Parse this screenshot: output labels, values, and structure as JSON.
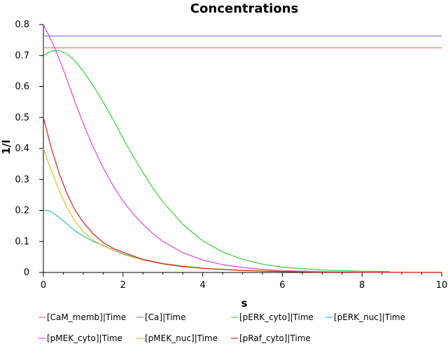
{
  "chart_data": {
    "type": "line",
    "title": "Concentrations",
    "xlabel": "s",
    "ylabel": "1/l",
    "xlim": [
      0,
      10
    ],
    "ylim": [
      0,
      0.8
    ],
    "xticks": [
      0,
      2,
      4,
      6,
      8,
      10
    ],
    "yticks": [
      0,
      0.1,
      0.2,
      0.3,
      0.4,
      0.5,
      0.6,
      0.7,
      0.8
    ],
    "grid": false,
    "legend": "bottom",
    "series": [
      {
        "name": "[CaM_memb]|Time",
        "color": "#e86a6a",
        "x": [
          0,
          10
        ],
        "y": [
          0.725,
          0.725
        ]
      },
      {
        "name": "[Ca]|Time",
        "color": "#8a7ae0",
        "x": [
          0,
          10
        ],
        "y": [
          0.763,
          0.763
        ]
      },
      {
        "name": "[pERK_cyto]|Time",
        "color": "#2fd82f",
        "x": [
          0,
          0.2,
          0.4,
          0.6,
          0.8,
          1.0,
          1.25,
          1.5,
          1.75,
          2.0,
          2.25,
          2.5,
          2.75,
          3.0,
          3.5,
          4.0,
          4.5,
          5.0,
          5.5,
          6.0,
          7.0,
          8.0,
          8.7
        ],
        "y": [
          0.7,
          0.715,
          0.716,
          0.705,
          0.682,
          0.65,
          0.603,
          0.55,
          0.494,
          0.432,
          0.376,
          0.322,
          0.272,
          0.228,
          0.155,
          0.102,
          0.066,
          0.042,
          0.027,
          0.017,
          0.008,
          0.004,
          0.003
        ]
      },
      {
        "name": "[pERK_nuc]|Time",
        "color": "#2bc4cc",
        "x": [
          0,
          0.1,
          0.2,
          0.3,
          0.5,
          0.75,
          1.0,
          1.25,
          1.5,
          2.0,
          2.5,
          3.0,
          4.0,
          5.0,
          6.0,
          7.0,
          8.0,
          10.0
        ],
        "y": [
          0.2,
          0.2,
          0.196,
          0.187,
          0.166,
          0.138,
          0.118,
          0.1,
          0.087,
          0.06,
          0.042,
          0.029,
          0.014,
          0.007,
          0.004,
          0.002,
          0.001,
          0.001
        ]
      },
      {
        "name": "[pMEK_cyto]|Time",
        "color": "#e040e0",
        "x": [
          0,
          0.25,
          0.5,
          0.75,
          1.0,
          1.25,
          1.5,
          1.75,
          2.0,
          2.25,
          2.5,
          2.75,
          3.0,
          3.5,
          4.0,
          4.5,
          5.0,
          5.5,
          6.0,
          7.0,
          8.0
        ],
        "y": [
          0.8,
          0.735,
          0.655,
          0.565,
          0.48,
          0.405,
          0.338,
          0.28,
          0.23,
          0.19,
          0.155,
          0.125,
          0.1,
          0.064,
          0.04,
          0.025,
          0.016,
          0.01,
          0.006,
          0.003,
          0.001
        ]
      },
      {
        "name": "[pMEK_nuc]|Time",
        "color": "#e0c020",
        "x": [
          0,
          0.2,
          0.4,
          0.6,
          0.8,
          1.0,
          1.25,
          1.5,
          2.0,
          2.5,
          3.0,
          4.0,
          5.0,
          6.0,
          7.0,
          8.0,
          10.0
        ],
        "y": [
          0.4,
          0.328,
          0.262,
          0.208,
          0.165,
          0.132,
          0.104,
          0.086,
          0.058,
          0.04,
          0.028,
          0.014,
          0.007,
          0.004,
          0.002,
          0.001,
          0.001
        ]
      },
      {
        "name": "[pRaf_cyto]|Time",
        "color": "#d42020",
        "x": [
          0,
          0.2,
          0.4,
          0.6,
          0.8,
          1.0,
          1.25,
          1.5,
          1.75,
          2.0,
          2.5,
          3.0,
          3.5,
          4.0,
          5.0,
          6.0,
          7.0,
          8.0,
          10.0
        ],
        "y": [
          0.5,
          0.4,
          0.318,
          0.252,
          0.2,
          0.162,
          0.125,
          0.097,
          0.078,
          0.065,
          0.042,
          0.028,
          0.019,
          0.013,
          0.006,
          0.003,
          0.001,
          0.001,
          0.0
        ]
      }
    ]
  }
}
